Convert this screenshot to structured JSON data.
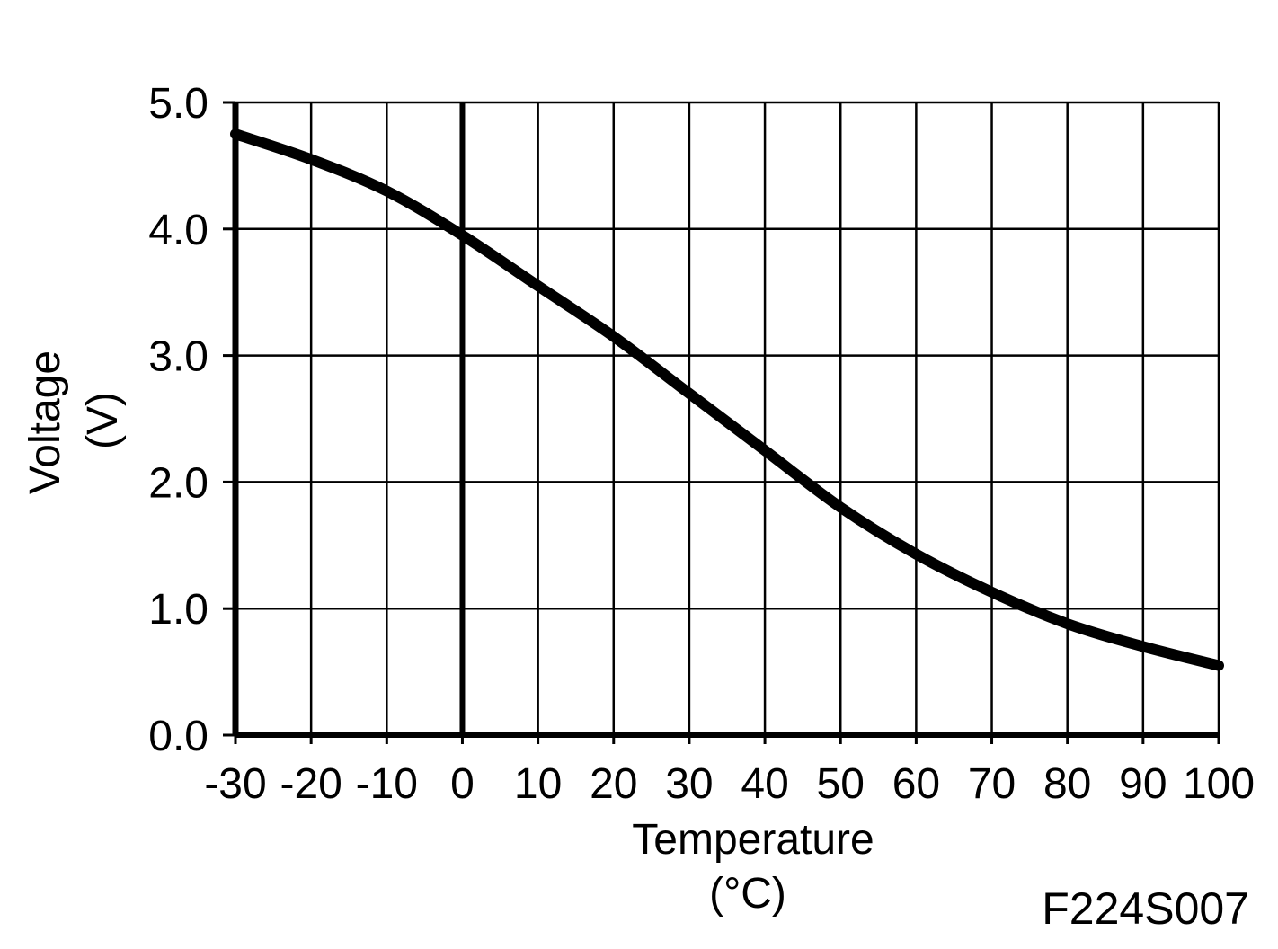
{
  "chart_data": {
    "type": "line",
    "xlabel": "Temperature",
    "xunit": "(°C)",
    "ylabel": "Voltage",
    "yunit": "(V)",
    "xlim": [
      -30,
      100
    ],
    "ylim": [
      0,
      5
    ],
    "x_ticks": [
      -30,
      -20,
      -10,
      0,
      10,
      20,
      30,
      40,
      50,
      60,
      70,
      80,
      90,
      100
    ],
    "x_tick_labels": [
      "-30",
      "-20",
      "-10",
      "0",
      "10",
      "20",
      "30",
      "40",
      "50",
      "60",
      "70",
      "80",
      "90",
      "100"
    ],
    "y_ticks": [
      0,
      1,
      2,
      3,
      4,
      5
    ],
    "y_tick_labels": [
      "0.0",
      "1.0",
      "2.0",
      "3.0",
      "4.0",
      "5.0"
    ],
    "grid": true,
    "series": [
      {
        "x": [
          -30,
          -20,
          -10,
          0,
          10,
          20,
          30,
          40,
          50,
          60,
          70,
          80,
          90,
          100
        ],
        "y": [
          4.75,
          4.55,
          4.3,
          3.95,
          3.55,
          3.15,
          2.7,
          2.25,
          1.8,
          1.43,
          1.13,
          0.88,
          0.7,
          0.55
        ]
      }
    ],
    "color": "#000000"
  },
  "figure_id": "F224S007"
}
